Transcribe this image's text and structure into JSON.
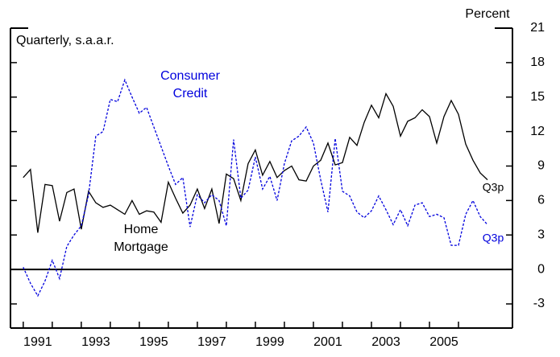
{
  "chart_data": {
    "type": "line",
    "subtitle": "Quarterly, s.a.a.r.",
    "y_axis_label": "Percent",
    "x": [
      1990.5,
      1990.75,
      1991,
      1991.25,
      1991.5,
      1991.75,
      1992,
      1992.25,
      1992.5,
      1992.75,
      1993,
      1993.25,
      1993.5,
      1993.75,
      1994,
      1994.25,
      1994.5,
      1994.75,
      1995,
      1995.25,
      1995.5,
      1995.75,
      1996,
      1996.25,
      1996.5,
      1996.75,
      1997,
      1997.25,
      1997.5,
      1997.75,
      1998,
      1998.25,
      1998.5,
      1998.75,
      1999,
      1999.25,
      1999.5,
      1999.75,
      2000,
      2000.25,
      2000.5,
      2000.75,
      2001,
      2001.25,
      2001.5,
      2001.75,
      2002,
      2002.25,
      2002.5,
      2002.75,
      2003,
      2003.25,
      2003.5,
      2003.75,
      2004,
      2004.25,
      2004.5,
      2004.75,
      2005,
      2005.25,
      2005.5,
      2005.75,
      2006,
      2006.25,
      2006.5
    ],
    "series": [
      {
        "label": [
          "Home",
          "Mortgage"
        ],
        "end_label": "Q3p",
        "color": "#000000",
        "dashed": false,
        "values": [
          8.0,
          8.7,
          3.2,
          7.4,
          7.3,
          4.2,
          6.7,
          7.0,
          3.5,
          6.8,
          5.8,
          5.4,
          5.6,
          5.2,
          4.8,
          6.0,
          4.8,
          5.1,
          5.0,
          4.1,
          7.6,
          6.2,
          4.9,
          5.6,
          7.0,
          5.3,
          7.0,
          4.0,
          8.3,
          7.9,
          6.0,
          9.2,
          10.4,
          8.2,
          9.4,
          8.0,
          8.6,
          9.0,
          7.8,
          7.7,
          9.0,
          9.5,
          11.0,
          9.1,
          9.3,
          11.5,
          10.8,
          12.8,
          14.3,
          13.2,
          15.3,
          14.2,
          11.6,
          12.9,
          13.2,
          13.9,
          13.3,
          11.0,
          13.3,
          14.7,
          13.5,
          10.9,
          9.5,
          8.4,
          7.8
        ]
      },
      {
        "label": [
          "Consumer",
          "Credit"
        ],
        "end_label": "Q3p",
        "color": "#0000dd",
        "dashed": true,
        "values": [
          0.2,
          -1.2,
          -2.3,
          -1.0,
          0.8,
          -0.8,
          2.0,
          3.0,
          3.8,
          6.5,
          11.6,
          12.0,
          14.8,
          14.6,
          16.5,
          15.0,
          13.6,
          14.1,
          12.4,
          10.7,
          9.0,
          7.4,
          8.0,
          3.7,
          6.5,
          5.8,
          6.5,
          6.0,
          3.8,
          11.3,
          6.2,
          6.9,
          9.8,
          7.0,
          8.1,
          6.0,
          9.2,
          11.2,
          11.6,
          12.4,
          11.0,
          7.8,
          5.0,
          11.4,
          6.8,
          6.4,
          5.0,
          4.5,
          5.1,
          6.4,
          5.2,
          3.9,
          5.2,
          3.8,
          5.6,
          5.8,
          4.6,
          4.8,
          4.5,
          2.1,
          2.1,
          4.8,
          6.0,
          4.6,
          3.9
        ]
      }
    ],
    "xlim": [
      1990.06,
      2007.36
    ],
    "xticks": [
      1991,
      1993,
      1995,
      1997,
      1999,
      2001,
      2003,
      2005
    ],
    "ylim": [
      -5.1,
      21
    ],
    "yticks": [
      -3,
      0,
      3,
      6,
      9,
      12,
      15,
      18,
      21
    ],
    "zero_line": true,
    "grid": false
  }
}
